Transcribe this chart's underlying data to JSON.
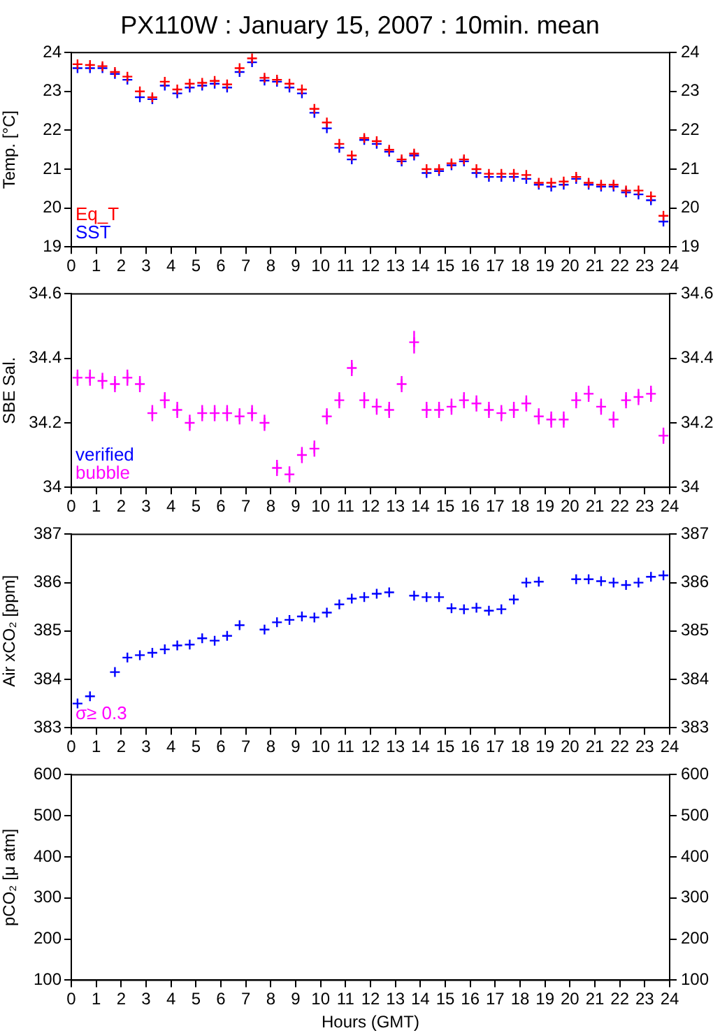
{
  "chart_data": [
    {
      "type": "scatter",
      "title": "PX110W : January 15, 2007 : 10min. mean",
      "ylabel": "Temp. [°C]",
      "marker": "cross",
      "grid": false,
      "legend": "bottom left",
      "x": [
        0.25,
        0.75,
        1.25,
        1.75,
        2.25,
        2.75,
        3.25,
        3.75,
        4.25,
        4.75,
        5.25,
        5.75,
        6.25,
        6.75,
        7.25,
        7.75,
        8.25,
        8.75,
        9.25,
        9.75,
        10.25,
        10.75,
        11.25,
        11.75,
        12.25,
        12.75,
        13.25,
        13.75,
        14.25,
        14.75,
        15.25,
        15.75,
        16.25,
        16.75,
        17.25,
        17.75,
        18.25,
        18.75,
        19.25,
        19.75,
        20.25,
        20.75,
        21.25,
        21.75,
        22.25,
        22.75,
        23.25,
        23.75
      ],
      "series": [
        {
          "name": "Eq_T",
          "color": "#ff0000",
          "values": [
            23.7,
            23.68,
            23.65,
            23.5,
            23.38,
            23.0,
            22.85,
            23.25,
            23.05,
            23.2,
            23.22,
            23.27,
            23.18,
            23.6,
            23.85,
            23.35,
            23.3,
            23.2,
            23.05,
            22.55,
            22.2,
            21.65,
            21.35,
            21.8,
            21.72,
            21.5,
            21.25,
            21.4,
            21.0,
            21.0,
            21.15,
            21.25,
            21.0,
            20.88,
            20.88,
            20.88,
            20.85,
            20.65,
            20.65,
            20.68,
            20.8,
            20.65,
            20.6,
            20.6,
            20.45,
            20.45,
            20.3,
            19.8
          ]
        },
        {
          "name": "SST",
          "color": "#0000ff",
          "values": [
            23.6,
            23.6,
            23.6,
            23.45,
            23.3,
            22.85,
            22.8,
            23.15,
            22.95,
            23.1,
            23.15,
            23.2,
            23.1,
            23.5,
            23.75,
            23.28,
            23.25,
            23.1,
            22.95,
            22.45,
            22.05,
            21.55,
            21.25,
            21.75,
            21.65,
            21.45,
            21.2,
            21.35,
            20.9,
            20.95,
            21.1,
            21.2,
            20.9,
            20.8,
            20.8,
            20.8,
            20.75,
            20.6,
            20.55,
            20.6,
            20.75,
            20.6,
            20.55,
            20.55,
            20.4,
            20.35,
            20.2,
            19.65
          ]
        }
      ],
      "xlim": [
        0,
        24
      ],
      "xticks": [
        0,
        1,
        2,
        3,
        4,
        5,
        6,
        7,
        8,
        9,
        10,
        11,
        12,
        13,
        14,
        15,
        16,
        17,
        18,
        19,
        20,
        21,
        22,
        23,
        24
      ],
      "ylim": [
        19,
        24
      ],
      "yticks": [
        19,
        20,
        21,
        22,
        23,
        24
      ],
      "y2lim": [
        19,
        24
      ],
      "y2ticks": [
        19,
        20,
        21,
        22,
        23,
        24
      ]
    },
    {
      "type": "scatter",
      "ylabel": "SBE Sal.",
      "marker": "cross",
      "grid": false,
      "legend": "bottom left",
      "x": [
        0.25,
        0.75,
        1.25,
        1.75,
        2.25,
        2.75,
        3.25,
        3.75,
        4.25,
        4.75,
        5.25,
        5.75,
        6.25,
        6.75,
        7.25,
        7.75,
        8.25,
        8.75,
        9.25,
        9.75,
        10.25,
        10.75,
        11.25,
        11.75,
        12.25,
        12.75,
        13.25,
        13.75,
        14.25,
        14.75,
        15.25,
        15.75,
        16.25,
        16.75,
        17.25,
        17.75,
        18.25,
        18.75,
        19.25,
        19.75,
        20.25,
        20.75,
        21.25,
        21.75,
        22.25,
        22.75,
        23.25,
        23.75
      ],
      "series": [
        {
          "name": "verified",
          "color": "#0000ff",
          "values": [
            null,
            null,
            null,
            null,
            null,
            null,
            null,
            null,
            null,
            null,
            null,
            null,
            null,
            null,
            null,
            null,
            null,
            null,
            null,
            null,
            null,
            null,
            null,
            null,
            null,
            null,
            null,
            null,
            null,
            null,
            null,
            null,
            null,
            null,
            null,
            null,
            null,
            null,
            null,
            null,
            null,
            null,
            null,
            null,
            null,
            null,
            null,
            null
          ]
        },
        {
          "name": "bubble",
          "color": "#ff00ff",
          "values": [
            34.34,
            34.34,
            34.33,
            34.32,
            34.34,
            34.32,
            34.23,
            34.27,
            34.24,
            34.2,
            34.23,
            34.23,
            34.23,
            34.22,
            34.23,
            34.2,
            34.06,
            34.04,
            34.1,
            34.12,
            34.22,
            34.27,
            34.37,
            34.27,
            34.25,
            34.24,
            34.32,
            34.45,
            34.24,
            34.24,
            34.25,
            34.27,
            34.26,
            34.24,
            34.23,
            34.24,
            34.26,
            34.22,
            34.21,
            34.21,
            34.27,
            34.29,
            34.25,
            34.21,
            34.27,
            34.28,
            34.29,
            34.16
          ],
          "errors": [
            0.025,
            0.025,
            0.025,
            0.025,
            0.025,
            0.025,
            0.025,
            0.025,
            0.025,
            0.025,
            0.025,
            0.025,
            0.025,
            0.025,
            0.025,
            0.025,
            0.025,
            0.025,
            0.025,
            0.025,
            0.025,
            0.025,
            0.025,
            0.025,
            0.025,
            0.025,
            0.025,
            0.035,
            0.025,
            0.025,
            0.025,
            0.025,
            0.025,
            0.025,
            0.025,
            0.025,
            0.025,
            0.025,
            0.025,
            0.025,
            0.025,
            0.025,
            0.025,
            0.025,
            0.025,
            0.025,
            0.025,
            0.025
          ]
        }
      ],
      "xlim": [
        0,
        24
      ],
      "xticks": [
        0,
        1,
        2,
        3,
        4,
        5,
        6,
        7,
        8,
        9,
        10,
        11,
        12,
        13,
        14,
        15,
        16,
        17,
        18,
        19,
        20,
        21,
        22,
        23,
        24
      ],
      "ylim": [
        34,
        34.6
      ],
      "yticks": [
        34,
        34.2,
        34.4,
        34.6
      ],
      "y2lim": [
        34,
        34.6
      ],
      "y2ticks": [
        34,
        34.2,
        34.4,
        34.6
      ]
    },
    {
      "type": "scatter",
      "ylabel": "Air xCO₂ [ppm]",
      "marker": "cross",
      "grid": false,
      "x": [
        0.25,
        0.75,
        1.25,
        1.75,
        2.25,
        2.75,
        3.25,
        3.75,
        4.25,
        4.75,
        5.25,
        5.75,
        6.25,
        6.75,
        7.25,
        7.75,
        8.25,
        8.75,
        9.25,
        9.75,
        10.25,
        10.75,
        11.25,
        11.75,
        12.25,
        12.75,
        13.25,
        13.75,
        14.25,
        14.75,
        15.25,
        15.75,
        16.25,
        16.75,
        17.25,
        17.75,
        18.25,
        18.75,
        19.25,
        19.75,
        20.25,
        20.75,
        21.25,
        21.75,
        22.25,
        22.75,
        23.25,
        23.75
      ],
      "series": [
        {
          "name": "σ≥ 0.3",
          "color": "#ff00ff",
          "values": [
            null,
            null,
            null,
            null,
            null,
            null,
            null,
            null,
            null,
            null,
            null,
            null,
            null,
            null,
            null,
            null,
            null,
            null,
            null,
            null,
            null,
            null,
            null,
            null,
            null,
            null,
            null,
            null,
            null,
            null,
            null,
            null,
            null,
            null,
            null,
            null,
            null,
            null,
            null,
            null,
            null,
            null,
            null,
            null,
            null,
            null,
            null,
            null
          ]
        },
        {
          "color": "#0000ff",
          "values": [
            383.5,
            383.65,
            null,
            384.15,
            384.45,
            384.5,
            384.55,
            384.62,
            384.7,
            384.72,
            384.85,
            384.8,
            384.9,
            385.12,
            null,
            385.03,
            385.18,
            385.23,
            385.3,
            385.28,
            385.38,
            385.55,
            385.67,
            385.7,
            385.77,
            385.8,
            null,
            385.73,
            385.7,
            385.7,
            385.47,
            385.45,
            385.48,
            385.42,
            385.45,
            385.65,
            386.0,
            386.02,
            null,
            null,
            386.07,
            386.07,
            386.03,
            386.0,
            385.95,
            386.0,
            386.12,
            386.15
          ]
        }
      ],
      "xlim": [
        0,
        24
      ],
      "xticks": [
        0,
        1,
        2,
        3,
        4,
        5,
        6,
        7,
        8,
        9,
        10,
        11,
        12,
        13,
        14,
        15,
        16,
        17,
        18,
        19,
        20,
        21,
        22,
        23,
        24
      ],
      "ylim": [
        383,
        387
      ],
      "yticks": [
        383,
        384,
        385,
        386,
        387
      ],
      "y2lim": [
        383,
        387
      ],
      "y2ticks": [
        383,
        384,
        385,
        386,
        387
      ]
    },
    {
      "type": "scatter",
      "ylabel": "pCO₂ [μ atm]",
      "xlabel": "Hours (GMT)",
      "grid": false,
      "xlim": [
        0,
        24
      ],
      "xticks": [
        0,
        1,
        2,
        3,
        4,
        5,
        6,
        7,
        8,
        9,
        10,
        11,
        12,
        13,
        14,
        15,
        16,
        17,
        18,
        19,
        20,
        21,
        22,
        23,
        24
      ],
      "ylim": [
        100,
        600
      ],
      "yticks": [
        100,
        200,
        300,
        400,
        500,
        600
      ],
      "y2lim": [
        100,
        600
      ],
      "y2ticks": [
        100,
        200,
        300,
        400,
        500,
        600
      ]
    }
  ]
}
